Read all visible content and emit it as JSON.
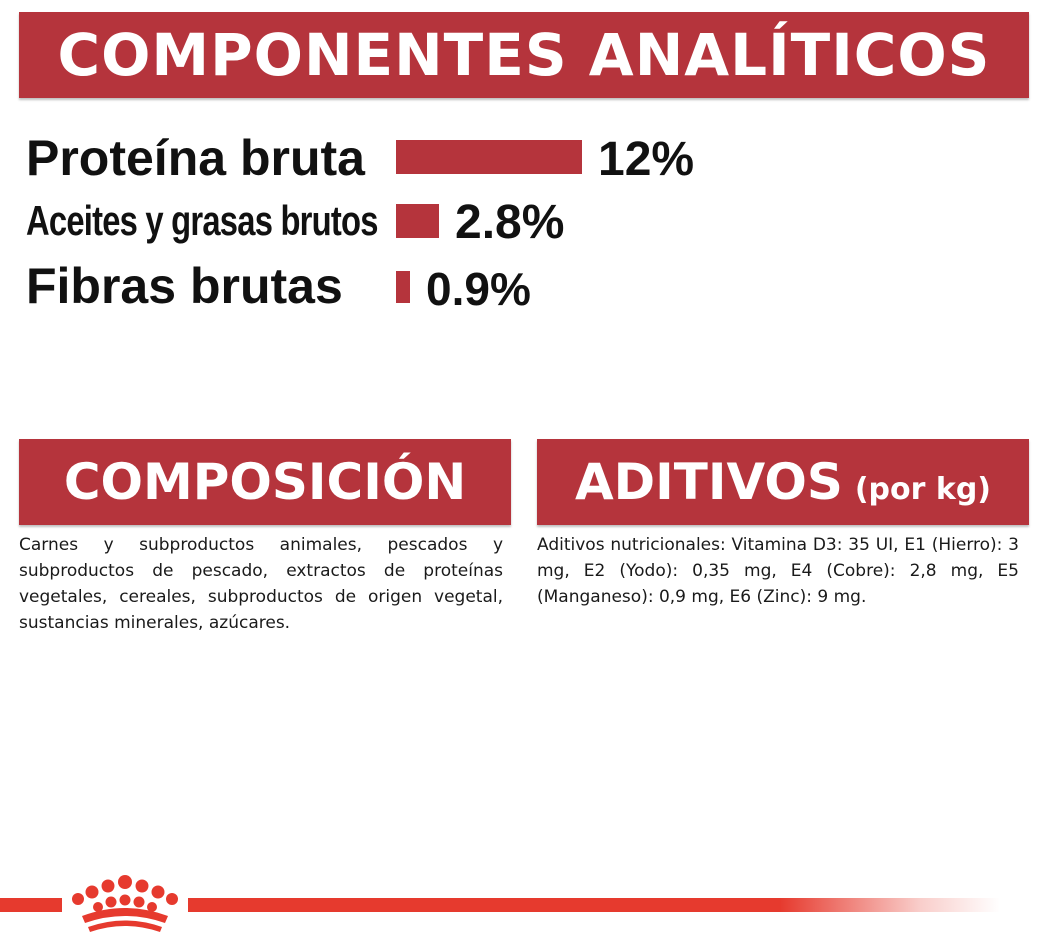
{
  "analytic": {
    "title": "COMPONENTES ANALÍTICOS",
    "nutrients": [
      {
        "label": "Proteína bruta",
        "value_label": "12%",
        "value": 12
      },
      {
        "label": "Aceites y grasas brutos",
        "value_label": "2.8%",
        "value": 2.8
      },
      {
        "label": "Fibras brutas",
        "value_label": "0.9%",
        "value": 0.9
      }
    ]
  },
  "composition": {
    "title": "COMPOSICIÓN",
    "text": "Carnes y subproductos animales, pescados y subproductos de pescado, extractos de proteínas vegetales, cereales, subproductos de origen vegetal, sustancias minerales, azúcares."
  },
  "additives": {
    "title": "ADITIVOS",
    "subtitle": "(por kg)",
    "text": "Aditivos nutricionales: Vitamina D3: 35 UI, E1 (Hierro): 3 mg, E2 (Yodo): 0,35 mg, E4 (Cobre): 2,8 mg, E5 (Manganeso): 0,9 mg, E6 (Zinc): 9 mg."
  },
  "colors": {
    "banner": "#b5343c",
    "bar": "#b5343c",
    "footer_line": "#e63a2e",
    "logo": "#e63a2e"
  },
  "logo_icon": "royal-crown-icon"
}
